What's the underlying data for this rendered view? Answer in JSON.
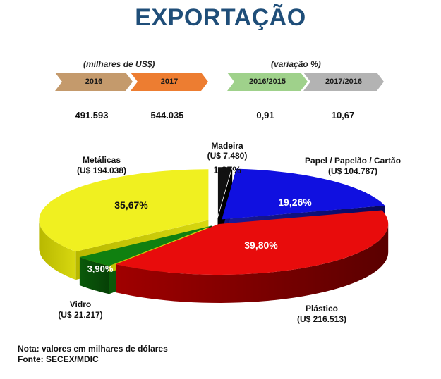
{
  "header": {
    "title": "EXPORTAÇÃO"
  },
  "summary": {
    "values_label": "(milhares de US$)",
    "variation_label": "(variação %)",
    "tags": [
      {
        "label": "2016",
        "value": "491.593",
        "color": "#c49a6c"
      },
      {
        "label": "2017",
        "value": "544.035",
        "color": "#ed7d31"
      },
      {
        "label": "2016/2015",
        "value": "0,91",
        "color": "#9fd18b"
      },
      {
        "label": "2017/2016",
        "value": "10,67",
        "color": "#b3b3b3"
      }
    ]
  },
  "chart_data": {
    "type": "pie",
    "slices": [
      {
        "name": "Madeira",
        "amount": "(U$ 7.480)",
        "percent_label": "1,37%",
        "value": 1.37,
        "color": "#111111"
      },
      {
        "name": "Papel / Papelão / Cartão",
        "amount": "(U$ 104.787)",
        "percent_label": "19,26%",
        "value": 19.26,
        "color": "#1010e0"
      },
      {
        "name": "Plástico",
        "amount": "(U$ 216.513)",
        "percent_label": "39,80%",
        "value": 39.8,
        "color": "#e80c0c"
      },
      {
        "name": "Vidro",
        "amount": "(U$ 21.217)",
        "percent_label": "3,90%",
        "value": 3.9,
        "color": "#108010"
      },
      {
        "name": "Metálicas",
        "amount": "(U$ 194.038)",
        "percent_label": "35,67%",
        "value": 35.67,
        "color": "#f0f020"
      }
    ]
  },
  "notes": {
    "line1": "Nota: valores em milhares de dólares",
    "line2": "Fonte: SECEX/MDIC"
  }
}
